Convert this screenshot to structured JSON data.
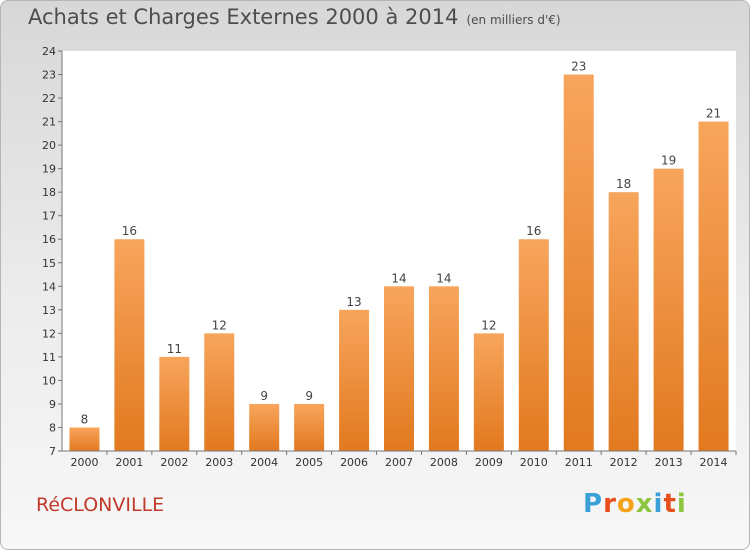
{
  "title": "Achats et Charges Externes 2000 à 2014",
  "unit": "(en milliers d'€)",
  "commune": "RéCLONVILLE",
  "brand": {
    "letters": [
      "P",
      "r",
      "o",
      "x",
      "i",
      "t",
      "i"
    ],
    "colors": [
      "#3aa0d8",
      "#e84e1b",
      "#f5a21b",
      "#8cc63f",
      "#3aa0d8",
      "#e84e1b",
      "#8cc63f"
    ]
  },
  "chart_data": {
    "type": "bar",
    "categories": [
      "2000",
      "2001",
      "2002",
      "2003",
      "2004",
      "2005",
      "2006",
      "2007",
      "2008",
      "2009",
      "2010",
      "2011",
      "2012",
      "2013",
      "2014"
    ],
    "values": [
      8,
      16,
      11,
      12,
      9,
      9,
      13,
      14,
      14,
      12,
      16,
      23,
      18,
      19,
      21
    ],
    "ylim": [
      7,
      24
    ],
    "yticks": [
      7,
      8,
      9,
      10,
      11,
      12,
      13,
      14,
      15,
      16,
      17,
      18,
      19,
      20,
      21,
      22,
      23,
      24
    ],
    "grid": false,
    "colors": {
      "bar_light": "#f7a55c",
      "bar_dark": "#e2791f"
    }
  }
}
